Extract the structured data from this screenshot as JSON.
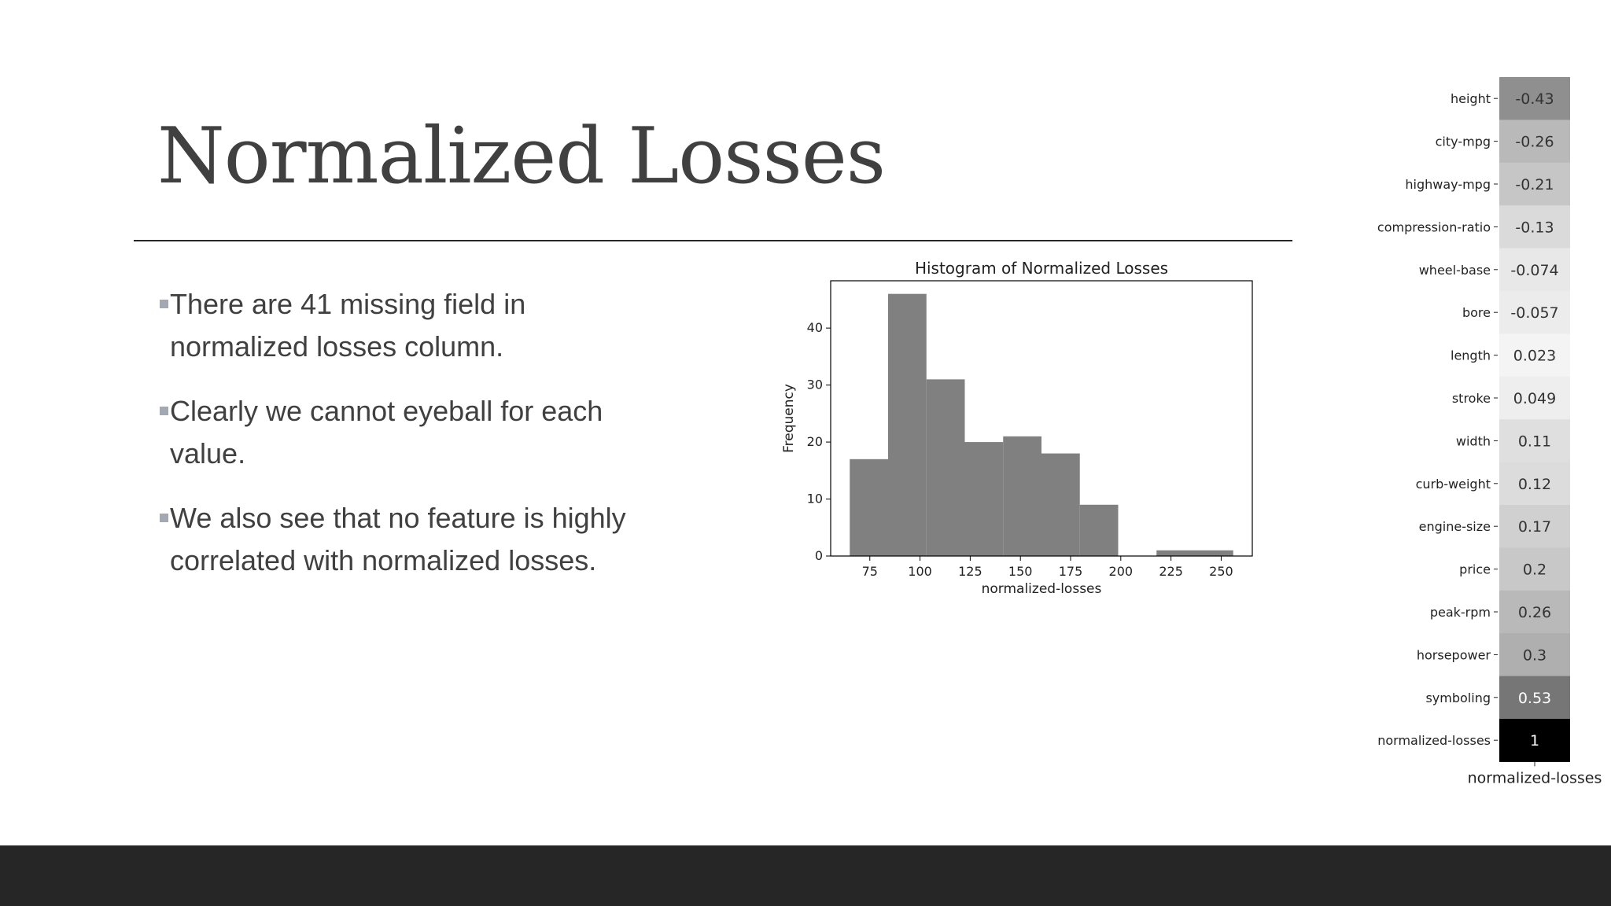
{
  "slide": {
    "title": "Normalized Losses",
    "bullets": [
      {
        "line1": "There are 41 missing field in",
        "line2": "normalized losses column."
      },
      {
        "line1": "Clearly we cannot eyeball for each",
        "line2": "value."
      },
      {
        "line1": "We also see that no feature is highly",
        "line2": "correlated with normalized losses."
      }
    ]
  },
  "colors": {
    "title": "#404040",
    "text": "#404040",
    "bullet_mark": "#a3a9b2",
    "footer": "#262626",
    "bar": "#808080"
  },
  "chart_data": [
    {
      "type": "bar",
      "title": "Histogram of Normalized Losses",
      "xlabel": "normalized-losses",
      "ylabel": "Frequency",
      "bins": [
        [
          65,
          84.1,
          17
        ],
        [
          84.1,
          103.2,
          46
        ],
        [
          103.2,
          122.3,
          31
        ],
        [
          122.3,
          141.4,
          20
        ],
        [
          141.4,
          160.5,
          21
        ],
        [
          160.5,
          179.6,
          18
        ],
        [
          179.6,
          198.7,
          9
        ],
        [
          198.7,
          217.8,
          0
        ],
        [
          217.8,
          236.9,
          1
        ],
        [
          236.9,
          256,
          1
        ]
      ],
      "xticks": [
        75,
        100,
        125,
        150,
        175,
        200,
        225,
        250
      ],
      "yticks": [
        0,
        10,
        20,
        30,
        40
      ],
      "xlim": [
        55.5,
        265.5
      ],
      "ylim": [
        0,
        48.3
      ],
      "grid": false
    },
    {
      "type": "heatmap",
      "xlabel": "normalized-losses",
      "columns": [
        "normalized-losses"
      ],
      "rows": [
        {
          "label": "height",
          "value": -0.43,
          "text": "-0.43"
        },
        {
          "label": "city-mpg",
          "value": -0.26,
          "text": "-0.26"
        },
        {
          "label": "highway-mpg",
          "value": -0.21,
          "text": "-0.21"
        },
        {
          "label": "compression-ratio",
          "value": -0.13,
          "text": "-0.13"
        },
        {
          "label": "wheel-base",
          "value": -0.074,
          "text": "-0.074"
        },
        {
          "label": "bore",
          "value": -0.057,
          "text": "-0.057"
        },
        {
          "label": "length",
          "value": 0.023,
          "text": "0.023"
        },
        {
          "label": "stroke",
          "value": 0.049,
          "text": "0.049"
        },
        {
          "label": "width",
          "value": 0.11,
          "text": "0.11"
        },
        {
          "label": "curb-weight",
          "value": 0.12,
          "text": "0.12"
        },
        {
          "label": "engine-size",
          "value": 0.17,
          "text": "0.17"
        },
        {
          "label": "price",
          "value": 0.2,
          "text": "0.2"
        },
        {
          "label": "peak-rpm",
          "value": 0.26,
          "text": "0.26"
        },
        {
          "label": "horsepower",
          "value": 0.3,
          "text": "0.3"
        },
        {
          "label": "symboling",
          "value": 0.53,
          "text": "0.53"
        },
        {
          "label": "normalized-losses",
          "value": 1,
          "text": "1"
        }
      ]
    }
  ]
}
